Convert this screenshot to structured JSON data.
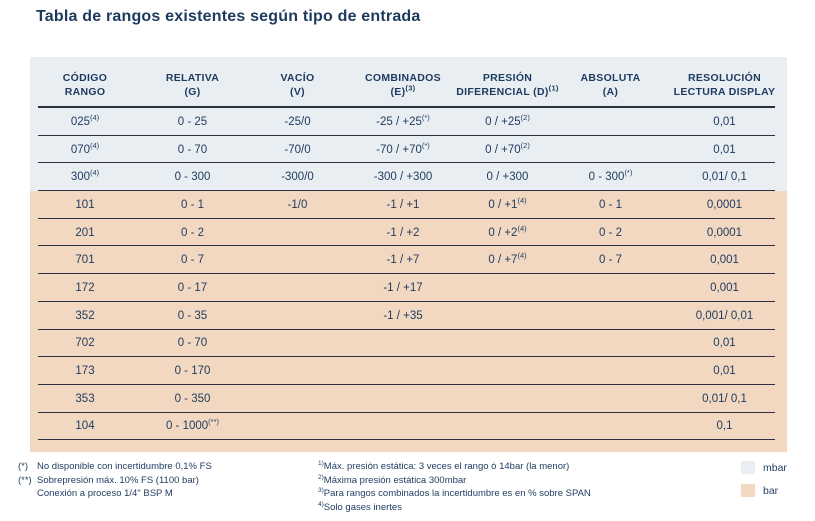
{
  "title": "Tabla de rangos existentes según tipo de entrada",
  "colors": {
    "mbar_band": "#e9eef3",
    "bar_band": "#f2d8c0",
    "text": "#1e3a5f",
    "line": "#2b323d",
    "title": "#1d3a5c"
  },
  "table": {
    "headers": [
      {
        "top": "CÓDIGO",
        "bottom": "RANGO",
        "bottom_sup": ""
      },
      {
        "top": "RELATIVA",
        "bottom": "(G)",
        "bottom_sup": ""
      },
      {
        "top": "VACÍO",
        "bottom": "(V)",
        "bottom_sup": ""
      },
      {
        "top": "COMBINADOS",
        "bottom": "(E)",
        "bottom_sup": "(3)"
      },
      {
        "top": "PRESIÓN",
        "bottom": "DIFERENCIAL (D)",
        "bottom_sup": "(1)"
      },
      {
        "top": "ABSOLUTA",
        "bottom": "(A)",
        "bottom_sup": ""
      },
      {
        "top": "RESOLUCIÓN",
        "bottom": "LECTURA DISPLAY",
        "bottom_sup": ""
      }
    ],
    "rows": [
      {
        "band": "mbar",
        "cells": [
          [
            "025",
            "(4)"
          ],
          "0 - 25",
          "-25/0",
          [
            "-25 / +25",
            "(*)"
          ],
          [
            "0 / +25",
            "(2)"
          ],
          "",
          "0,01"
        ]
      },
      {
        "band": "mbar",
        "cells": [
          [
            "070",
            "(4)"
          ],
          "0 - 70",
          "-70/0",
          [
            "-70 / +70",
            "(*)"
          ],
          [
            "0 / +70",
            "(2)"
          ],
          "",
          "0,01"
        ]
      },
      {
        "band": "mbar",
        "cells": [
          [
            "300",
            "(4)"
          ],
          "0 - 300",
          "-300/0",
          "-300 / +300",
          "0 / +300",
          [
            "0 - 300",
            "(*)"
          ],
          "0,01/ 0,1"
        ]
      },
      {
        "band": "bar",
        "cells": [
          "101",
          "0 - 1",
          "-1/0",
          "-1 / +1",
          [
            "0 / +1",
            "(4)"
          ],
          "0 - 1",
          "0,0001"
        ]
      },
      {
        "band": "bar",
        "cells": [
          "201",
          "0 - 2",
          "",
          "-1 / +2",
          [
            "0 / +2",
            "(4)"
          ],
          "0 - 2",
          "0,0001"
        ]
      },
      {
        "band": "bar",
        "cells": [
          "701",
          "0 - 7",
          "",
          "-1 / +7",
          [
            "0 / +7",
            "(4)"
          ],
          "0 - 7",
          "0,001"
        ]
      },
      {
        "band": "bar",
        "cells": [
          "172",
          "0 - 17",
          "",
          "-1 / +17",
          "",
          "",
          "0,001"
        ]
      },
      {
        "band": "bar",
        "cells": [
          "352",
          "0 - 35",
          "",
          "-1 / +35",
          "",
          "",
          "0,001/ 0,01"
        ]
      },
      {
        "band": "bar",
        "cells": [
          "702",
          "0 - 70",
          "",
          "",
          "",
          "",
          "0,01"
        ]
      },
      {
        "band": "bar",
        "cells": [
          "173",
          "0 - 170",
          "",
          "",
          "",
          "",
          "0,01"
        ]
      },
      {
        "band": "bar",
        "cells": [
          "353",
          "0 - 350",
          "",
          "",
          "",
          "",
          "0,01/ 0,1"
        ]
      },
      {
        "band": "bar",
        "cells": [
          "104",
          [
            "0 - 1000",
            "(**)"
          ],
          "",
          "",
          "",
          "",
          "0,1"
        ]
      }
    ]
  },
  "footnotes_left": [
    {
      "marker": "(*)",
      "text": "No disponible con incertidumbre 0,1% FS"
    },
    {
      "marker": "(**)",
      "text": "Sobrepresión máx. 10% FS (1100 bar)"
    },
    {
      "marker": "",
      "text": "Conexión a proceso 1/4\" BSP M"
    }
  ],
  "footnotes_right": [
    {
      "marker": "1)",
      "text": "Máx. presión estática: 3 veces el rango ó 14bar (la menor)"
    },
    {
      "marker": "2)",
      "text": "Máxima presión estática 300mbar"
    },
    {
      "marker": "3)",
      "text": "Para rangos combinados la incertidumbre es en % sobre SPAN"
    },
    {
      "marker": "4)",
      "text": "Solo gases inertes"
    }
  ],
  "legend": [
    {
      "label": "mbar",
      "color": "#e9eef3"
    },
    {
      "label": "bar",
      "color": "#f2d8c0"
    }
  ]
}
